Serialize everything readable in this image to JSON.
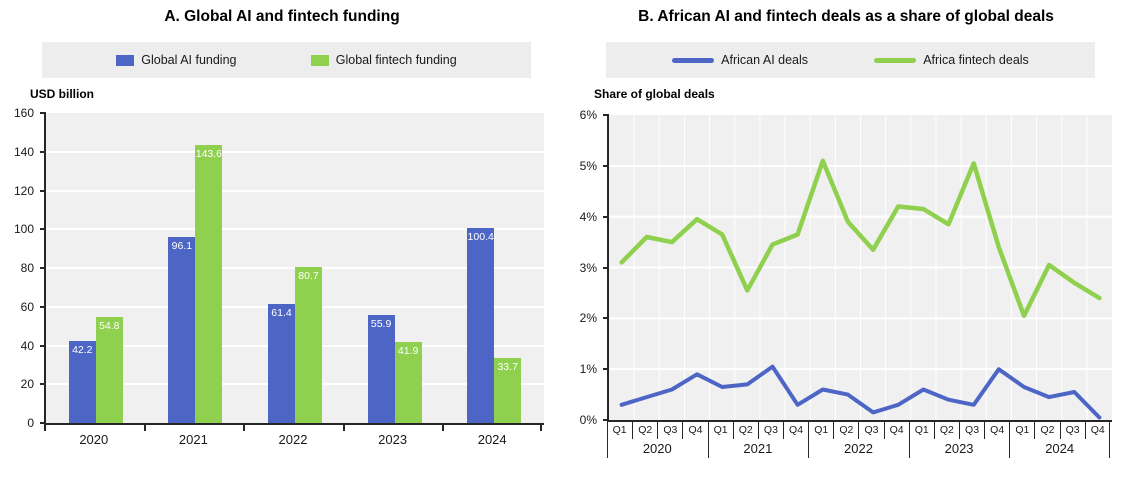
{
  "colors": {
    "ai_blue": "#4d66c6",
    "fintech_green": "#8fd04e",
    "plot_background": "#f0f0f0",
    "legend_background": "#ededed",
    "gridline": "#ffffff",
    "axis": "#262626",
    "bar_label_text": "#ffffff"
  },
  "chart_data": [
    {
      "panel": "A",
      "type": "bar",
      "title": "A. Global AI and fintech funding",
      "ylabel": "USD billion",
      "ylim": [
        0,
        160
      ],
      "yticks": [
        "0",
        "20",
        "40",
        "60",
        "80",
        "100",
        "120",
        "140",
        "160"
      ],
      "grid": "horizontal",
      "legend_position": "top",
      "bar_value_labels": true,
      "categories": [
        "2020",
        "2021",
        "2022",
        "2023",
        "2024"
      ],
      "series": [
        {
          "name": "Global AI funding",
          "color": "#4d66c6",
          "values": [
            42.2,
            96.1,
            61.4,
            55.9,
            100.4
          ]
        },
        {
          "name": "Global fintech funding",
          "color": "#8fd04e",
          "values": [
            54.8,
            143.6,
            80.7,
            41.9,
            33.7
          ]
        }
      ]
    },
    {
      "panel": "B",
      "type": "line",
      "title": "B. African AI and fintech deals as a share of global deals",
      "ylabel": "Share of global deals",
      "ylim": [
        0,
        6
      ],
      "yticks": [
        "0%",
        "1%",
        "2%",
        "3%",
        "4%",
        "5%",
        "6%"
      ],
      "grid": "both",
      "legend_position": "top",
      "x_quarter_labels": [
        "Q1",
        "Q2",
        "Q3",
        "Q4"
      ],
      "x_year_labels": [
        "2020",
        "2021",
        "2022",
        "2023",
        "2024"
      ],
      "series": [
        {
          "name": "African AI deals",
          "color": "#4d66c6",
          "values": [
            0.3,
            0.45,
            0.6,
            0.9,
            0.65,
            0.7,
            1.05,
            0.3,
            0.6,
            0.5,
            0.15,
            0.3,
            0.6,
            0.4,
            0.3,
            1.0,
            0.65,
            0.45,
            0.55,
            0.05
          ]
        },
        {
          "name": "Africa fintech deals",
          "color": "#8fd04e",
          "values": [
            3.1,
            3.6,
            3.5,
            3.95,
            3.65,
            2.55,
            3.45,
            3.65,
            5.1,
            3.9,
            3.35,
            4.2,
            4.15,
            3.85,
            5.05,
            3.4,
            2.05,
            3.05,
            2.7,
            2.4
          ]
        }
      ]
    }
  ]
}
